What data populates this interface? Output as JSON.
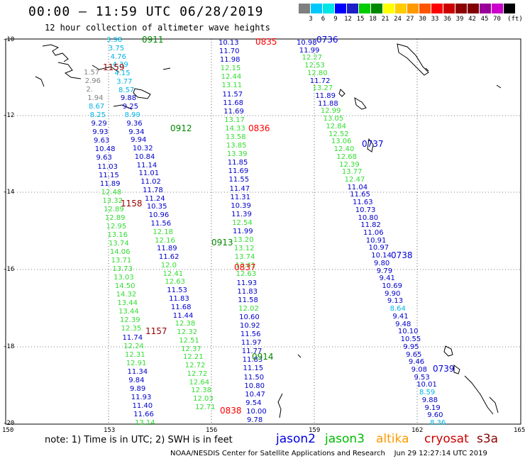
{
  "header": {
    "title": "00:00 – 11:59 UTC 06/28/2019",
    "subtitle": "12 hour collection of altimeter wave heights"
  },
  "scale": {
    "colors": [
      "#7f7f7f",
      "#00c8ff",
      "#00e5e5",
      "#0000ff",
      "#1e1ec8",
      "#00cc00",
      "#008800",
      "#ffff00",
      "#ffcc00",
      "#ff9900",
      "#ff5500",
      "#ff0000",
      "#cc0000",
      "#8b0000",
      "#800000",
      "#990099",
      "#cc00cc",
      "#000000"
    ],
    "labels": [
      "3",
      "6",
      "9",
      "12",
      "15",
      "18",
      "21",
      "24",
      "27",
      "30",
      "33",
      "36",
      "39",
      "42",
      "45",
      "70"
    ],
    "unit": "(ft)"
  },
  "axes": {
    "lat_labels": [
      "-10",
      "-12",
      "-14",
      "-16",
      "-18",
      "-20"
    ],
    "lon_labels": [
      "150",
      "153",
      "156",
      "159",
      "162",
      "165"
    ]
  },
  "passes": {
    "A": {
      "time": "1159",
      "values": [
        "1.57",
        "2.96",
        "2.",
        "1.94",
        "8.67",
        "8.25",
        "9.29",
        "9.93",
        "9.63",
        "10.48",
        "9.63",
        "11.03",
        "11.15",
        "11.89",
        "12.48",
        "13.32",
        "12.89",
        "12.89",
        "12.95",
        "13.16",
        "13.74",
        "14.06",
        "13.71",
        "13.73",
        "13.03",
        "14.50",
        "14.32",
        "13.44",
        "13.44",
        "12.39",
        "12.35",
        "11.74",
        "12.24",
        "12.31",
        "12.91",
        "11.34",
        "9.84",
        "9.89",
        "11.93",
        "11.40",
        "11.66",
        "13.14"
      ],
      "times": [
        "1158",
        "1157"
      ]
    },
    "B": {
      "values": [
        "3.98",
        "3.75",
        "4.76",
        "4.39",
        "4.15",
        "3.77",
        "8.57",
        "9.88",
        "9.25",
        "8.99",
        "9.36",
        "9.34",
        "9.94",
        "10.32",
        "10.84",
        "11.14",
        "11.01",
        "11.02",
        "11.78",
        "11.24",
        "10.35",
        "10.96",
        "11.56",
        "12.18",
        "12.16",
        "11.89",
        "11.62",
        "12.0",
        "12.41",
        "12.63",
        "11.53",
        "11.83",
        "11.68",
        "11.44",
        "12.38",
        "12.32",
        "12.51",
        "12.37",
        "12.21",
        "12.72",
        "12.72",
        "12.64",
        "12.38",
        "12.03",
        "12.71"
      ],
      "times": [
        "0911",
        "0912",
        "0913",
        "0914"
      ]
    },
    "C": {
      "values": [
        "10.13",
        "11.70",
        "11.98",
        "12.15",
        "12.44",
        "13.11",
        "11.57",
        "11.68",
        "11.69",
        "13.17",
        "14.33",
        "13.58",
        "13.85",
        "13.39",
        "11.85",
        "11.69",
        "11.55",
        "11.47",
        "11.31",
        "10.39",
        "11.39",
        "12.54",
        "11.99",
        "13.20",
        "13.12",
        "13.74",
        "13.41",
        "12.63",
        "11.93",
        "11.83",
        "11.58",
        "12.02",
        "10.60",
        "10.92",
        "11.56",
        "11.97",
        "11.77",
        "11.83",
        "11.15",
        "11.50",
        "10.80",
        "10.47",
        "9.54",
        "10.00",
        "9.78"
      ],
      "times": [
        "0835",
        "0836",
        "0837",
        "0838"
      ]
    },
    "D": {
      "values": [
        "10.98",
        "11.99",
        "12.27",
        "12.53",
        "12.80",
        "11.72",
        "13.27",
        "11.89",
        "11.88",
        "12.99",
        "13.05",
        "12.84",
        "12.52",
        "13.06",
        "12.40",
        "12.68",
        "12.39",
        "13.77",
        "12.47",
        "11.04",
        "11.65",
        "11.63",
        "10.73",
        "10.80",
        "11.82",
        "11.06",
        "10.91",
        "10.97",
        "10.14",
        "9.80",
        "9.79",
        "9.41",
        "10.69",
        "9.90",
        "9.13",
        "8.64",
        "9.41",
        "9.48",
        "10.10",
        "10.55",
        "9.95",
        "9.65",
        "9.46",
        "9.08",
        "9.53",
        "10.01",
        "8.59",
        "9.88",
        "9.19",
        "9.60",
        "8.36"
      ],
      "times": [
        "0736",
        "0737",
        "0738",
        "0739"
      ]
    }
  },
  "note": "note: 1) Time is in UTC; 2) SWH is in feet",
  "legend": [
    {
      "name": "jason2",
      "color": "#0000dd"
    },
    {
      "name": "jason3",
      "color": "#00bb00"
    },
    {
      "name": "altika",
      "color": "#ff9900"
    },
    {
      "name": "cryosat",
      "color": "#cc0000"
    },
    {
      "name": "s3a",
      "color": "#880000"
    }
  ],
  "credit": "NOAA/NESDIS Center for Satellite Applications and Research    Jun 29 12:27:14 UTC 2019"
}
